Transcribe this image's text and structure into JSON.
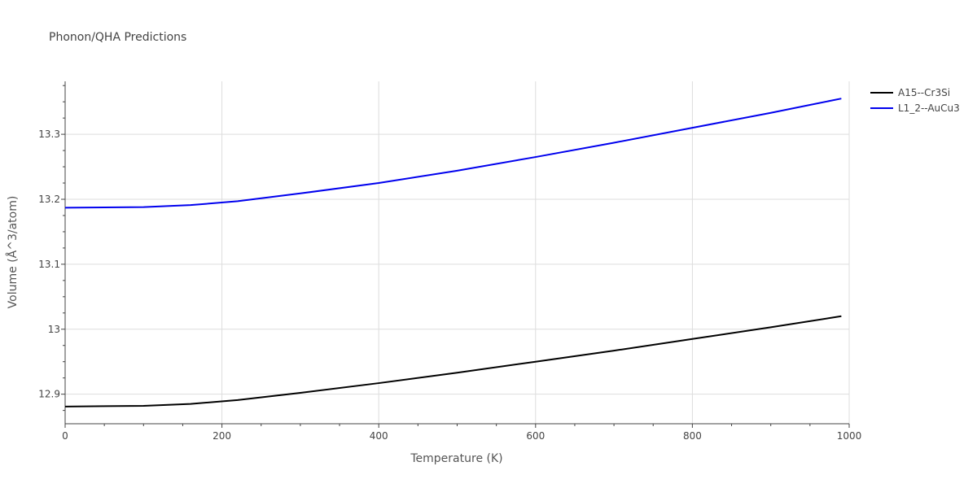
{
  "chart_data": {
    "type": "line",
    "title": "Phonon/QHA Predictions",
    "xlabel": "Temperature (K)",
    "ylabel": "Volume (Å^3/atom)",
    "xlim": [
      0,
      1000
    ],
    "ylim": [
      12.8545,
      13.3815
    ],
    "x_ticks": [
      0,
      200,
      400,
      600,
      800,
      1000
    ],
    "y_ticks": [
      12.9,
      13,
      13.1,
      13.2,
      13.3
    ],
    "x_tick_labels": [
      "0",
      "200",
      "400",
      "600",
      "800",
      "1000"
    ],
    "y_tick_labels": [
      "12.9",
      "13",
      "13.1",
      "13.2",
      "13.3"
    ],
    "grid": true,
    "legend_position": "top-right",
    "series": [
      {
        "name": "A15--Cr3Si",
        "color": "#000000",
        "x": [
          0,
          50,
          100,
          160,
          220,
          300,
          400,
          500,
          600,
          700,
          800,
          900,
          990
        ],
        "y": [
          12.881,
          12.8815,
          12.882,
          12.885,
          12.891,
          12.902,
          12.917,
          12.933,
          12.95,
          12.967,
          12.985,
          13.003,
          13.02
        ]
      },
      {
        "name": "L1_2--AuCu3",
        "color": "#0000ee",
        "x": [
          0,
          50,
          100,
          160,
          220,
          300,
          400,
          500,
          600,
          700,
          800,
          900,
          990
        ],
        "y": [
          13.187,
          13.1875,
          13.188,
          13.191,
          13.197,
          13.209,
          13.225,
          13.244,
          13.265,
          13.287,
          13.31,
          13.333,
          13.355
        ]
      }
    ]
  }
}
